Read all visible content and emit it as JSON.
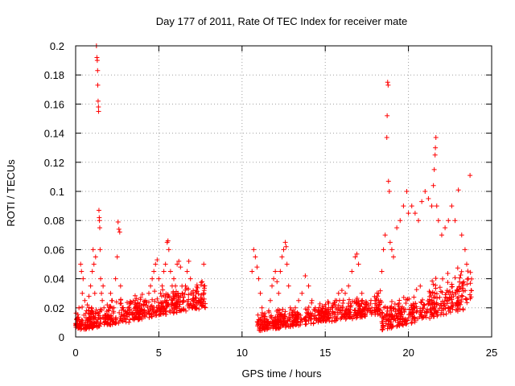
{
  "chart_data": {
    "type": "scatter",
    "title": "Day 177 of 2011, Rate Of TEC Index for receiver mate",
    "xlabel": "GPS time / hours",
    "ylabel": "ROTI / TECUs",
    "xlim": [
      0,
      25
    ],
    "ylim": [
      0,
      0.2
    ],
    "xticks": [
      "0",
      "5",
      "10",
      "15",
      "20",
      "25"
    ],
    "yticks": [
      "0",
      "0.02",
      "0.04",
      "0.06",
      "0.08",
      "0.1",
      "0.12",
      "0.14",
      "0.16",
      "0.18",
      "0.2"
    ],
    "grid": true,
    "marker": "+",
    "color": "#ff0000",
    "series": [
      {
        "values": [
          [
            0.05,
            0.012
          ],
          [
            0.15,
            0.008
          ],
          [
            0.2,
            0.02
          ],
          [
            0.3,
            0.05
          ],
          [
            0.35,
            0.045
          ],
          [
            0.4,
            0.03
          ],
          [
            0.45,
            0.04
          ],
          [
            0.5,
            0.015
          ],
          [
            0.55,
            0.025
          ],
          [
            0.6,
            0.01
          ],
          [
            0.65,
            0.018
          ],
          [
            0.7,
            0.022
          ],
          [
            0.75,
            0.012
          ],
          [
            0.8,
            0.028
          ],
          [
            0.85,
            0.016
          ],
          [
            0.9,
            0.035
          ],
          [
            0.95,
            0.02
          ],
          [
            1.0,
            0.045
          ],
          [
            1.05,
            0.06
          ],
          [
            1.1,
            0.05
          ],
          [
            1.15,
            0.03
          ],
          [
            1.2,
            0.055
          ],
          [
            1.25,
            0.2
          ],
          [
            1.28,
            0.192
          ],
          [
            1.3,
            0.19
          ],
          [
            1.32,
            0.183
          ],
          [
            1.33,
            0.173
          ],
          [
            1.35,
            0.162
          ],
          [
            1.37,
            0.158
          ],
          [
            1.38,
            0.155
          ],
          [
            1.4,
            0.087
          ],
          [
            1.42,
            0.082
          ],
          [
            1.43,
            0.08
          ],
          [
            1.45,
            0.075
          ],
          [
            1.47,
            0.06
          ],
          [
            1.5,
            0.04
          ],
          [
            1.55,
            0.03
          ],
          [
            1.6,
            0.025
          ],
          [
            1.65,
            0.035
          ],
          [
            1.7,
            0.02
          ],
          [
            1.75,
            0.015
          ],
          [
            1.8,
            0.01
          ],
          [
            1.9,
            0.022
          ],
          [
            2.0,
            0.018
          ],
          [
            2.1,
            0.03
          ],
          [
            2.2,
            0.025
          ],
          [
            2.3,
            0.02
          ],
          [
            2.4,
            0.04
          ],
          [
            2.5,
            0.055
          ],
          [
            2.55,
            0.079
          ],
          [
            2.6,
            0.074
          ],
          [
            2.65,
            0.072
          ],
          [
            2.7,
            0.035
          ],
          [
            2.8,
            0.02
          ],
          [
            2.9,
            0.015
          ],
          [
            3.0,
            0.012
          ],
          [
            3.2,
            0.01
          ],
          [
            3.4,
            0.015
          ],
          [
            3.6,
            0.02
          ],
          [
            3.8,
            0.012
          ],
          [
            4.0,
            0.018
          ],
          [
            4.2,
            0.025
          ],
          [
            4.4,
            0.03
          ],
          [
            4.5,
            0.035
          ],
          [
            4.6,
            0.04
          ],
          [
            4.7,
            0.045
          ],
          [
            4.8,
            0.05
          ],
          [
            4.9,
            0.053
          ],
          [
            5.0,
            0.04
          ],
          [
            5.1,
            0.03
          ],
          [
            5.2,
            0.035
          ],
          [
            5.3,
            0.045
          ],
          [
            5.4,
            0.05
          ],
          [
            5.5,
            0.065
          ],
          [
            5.55,
            0.066
          ],
          [
            5.6,
            0.06
          ],
          [
            5.7,
            0.045
          ],
          [
            5.8,
            0.035
          ],
          [
            5.9,
            0.04
          ],
          [
            6.0,
            0.035
          ],
          [
            6.1,
            0.05
          ],
          [
            6.2,
            0.052
          ],
          [
            6.3,
            0.048
          ],
          [
            6.4,
            0.03
          ],
          [
            6.5,
            0.025
          ],
          [
            6.6,
            0.035
          ],
          [
            6.7,
            0.045
          ],
          [
            6.8,
            0.052
          ],
          [
            6.9,
            0.04
          ],
          [
            7.0,
            0.03
          ],
          [
            7.1,
            0.025
          ],
          [
            7.2,
            0.02
          ],
          [
            7.4,
            0.025
          ],
          [
            7.6,
            0.038
          ],
          [
            7.7,
            0.05
          ],
          [
            10.6,
            0.045
          ],
          [
            10.7,
            0.06
          ],
          [
            10.8,
            0.055
          ],
          [
            10.9,
            0.048
          ],
          [
            11.0,
            0.04
          ],
          [
            11.1,
            0.03
          ],
          [
            11.2,
            0.02
          ],
          [
            11.3,
            0.015
          ],
          [
            11.4,
            0.01
          ],
          [
            11.5,
            0.012
          ],
          [
            11.6,
            0.018
          ],
          [
            11.7,
            0.025
          ],
          [
            11.8,
            0.035
          ],
          [
            11.9,
            0.04
          ],
          [
            12.0,
            0.045
          ],
          [
            12.1,
            0.038
          ],
          [
            12.2,
            0.03
          ],
          [
            12.3,
            0.045
          ],
          [
            12.4,
            0.055
          ],
          [
            12.5,
            0.06
          ],
          [
            12.6,
            0.065
          ],
          [
            12.65,
            0.062
          ],
          [
            12.7,
            0.05
          ],
          [
            12.8,
            0.035
          ],
          [
            12.9,
            0.02
          ],
          [
            13.0,
            0.015
          ],
          [
            13.2,
            0.02
          ],
          [
            13.4,
            0.025
          ],
          [
            13.6,
            0.03
          ],
          [
            13.8,
            0.042
          ],
          [
            14.0,
            0.035
          ],
          [
            14.2,
            0.025
          ],
          [
            14.4,
            0.02
          ],
          [
            14.6,
            0.015
          ],
          [
            14.8,
            0.018
          ],
          [
            15.0,
            0.012
          ],
          [
            15.2,
            0.015
          ],
          [
            15.4,
            0.02
          ],
          [
            15.6,
            0.025
          ],
          [
            15.8,
            0.03
          ],
          [
            16.0,
            0.032
          ],
          [
            16.2,
            0.03
          ],
          [
            16.4,
            0.035
          ],
          [
            16.6,
            0.045
          ],
          [
            16.8,
            0.055
          ],
          [
            16.9,
            0.057
          ],
          [
            17.0,
            0.05
          ],
          [
            17.2,
            0.03
          ],
          [
            17.4,
            0.02
          ],
          [
            17.6,
            0.018
          ],
          [
            17.8,
            0.02
          ],
          [
            18.0,
            0.025
          ],
          [
            18.2,
            0.03
          ],
          [
            18.4,
            0.045
          ],
          [
            18.5,
            0.06
          ],
          [
            18.6,
            0.07
          ],
          [
            18.7,
            0.137
          ],
          [
            18.72,
            0.152
          ],
          [
            18.75,
            0.175
          ],
          [
            18.78,
            0.173
          ],
          [
            18.8,
            0.107
          ],
          [
            18.85,
            0.1
          ],
          [
            18.9,
            0.065
          ],
          [
            19.0,
            0.06
          ],
          [
            19.1,
            0.055
          ],
          [
            19.3,
            0.075
          ],
          [
            19.5,
            0.08
          ],
          [
            19.7,
            0.09
          ],
          [
            19.9,
            0.1
          ],
          [
            20.0,
            0.085
          ],
          [
            20.2,
            0.09
          ],
          [
            20.4,
            0.085
          ],
          [
            20.6,
            0.08
          ],
          [
            20.8,
            0.093
          ],
          [
            21.0,
            0.1
          ],
          [
            21.2,
            0.095
          ],
          [
            21.4,
            0.09
          ],
          [
            21.5,
            0.104
          ],
          [
            21.55,
            0.115
          ],
          [
            21.6,
            0.125
          ],
          [
            21.62,
            0.13
          ],
          [
            21.65,
            0.137
          ],
          [
            21.7,
            0.09
          ],
          [
            21.8,
            0.08
          ],
          [
            22.0,
            0.07
          ],
          [
            22.2,
            0.075
          ],
          [
            22.4,
            0.08
          ],
          [
            22.6,
            0.09
          ],
          [
            22.8,
            0.08
          ],
          [
            23.0,
            0.101
          ],
          [
            23.2,
            0.07
          ],
          [
            23.4,
            0.06
          ],
          [
            23.5,
            0.05
          ],
          [
            23.6,
            0.04
          ],
          [
            23.7,
            0.111
          ]
        ]
      }
    ],
    "density_bands": [
      {
        "x": [
          0.0,
          7.8
        ],
        "y_low": [
          0.004,
          0.02
        ],
        "y_high": [
          0.018,
          0.038
        ]
      },
      {
        "x": [
          10.9,
          18.4
        ],
        "y_low": [
          0.004,
          0.015
        ],
        "y_high": [
          0.015,
          0.03
        ]
      },
      {
        "x": [
          18.4,
          23.8
        ],
        "y_low": [
          0.004,
          0.02
        ],
        "y_high": [
          0.02,
          0.05
        ]
      }
    ]
  }
}
